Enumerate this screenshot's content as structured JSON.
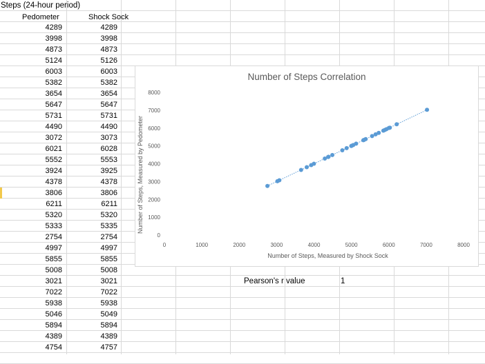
{
  "sheet": {
    "title": "Steps (24-hour period)",
    "col_a_header": "Pedometer",
    "col_b_header": "Shock Sock",
    "rows": [
      [
        "4289",
        "4289"
      ],
      [
        "3998",
        "3998"
      ],
      [
        "4873",
        "4873"
      ],
      [
        "5124",
        "5126"
      ],
      [
        "6003",
        "6003"
      ],
      [
        "5382",
        "5382"
      ],
      [
        "3654",
        "3654"
      ],
      [
        "5647",
        "5647"
      ],
      [
        "5731",
        "5731"
      ],
      [
        "4490",
        "4490"
      ],
      [
        "3072",
        "3073"
      ],
      [
        "6021",
        "6028"
      ],
      [
        "5552",
        "5553"
      ],
      [
        "3924",
        "3925"
      ],
      [
        "4378",
        "4378"
      ],
      [
        "3806",
        "3806"
      ],
      [
        "6211",
        "6211"
      ],
      [
        "5320",
        "5320"
      ],
      [
        "5333",
        "5335"
      ],
      [
        "2754",
        "2754"
      ],
      [
        "4997",
        "4997"
      ],
      [
        "5855",
        "5855"
      ],
      [
        "5008",
        "5008"
      ],
      [
        "3021",
        "3021"
      ],
      [
        "7022",
        "7022"
      ],
      [
        "5938",
        "5938"
      ],
      [
        "5046",
        "5049"
      ],
      [
        "5894",
        "5894"
      ],
      [
        "4389",
        "4389"
      ],
      [
        "4754",
        "4757"
      ]
    ]
  },
  "pearson": {
    "label": "Pearson's r value",
    "value": "1"
  },
  "chart_data": {
    "type": "scatter",
    "title": "Number of Steps Correlation",
    "xlabel": "Number of Steps, Measured by Shock Sock",
    "ylabel": "Number of Steps, Measured by Pedometer",
    "xlim": [
      0,
      8000
    ],
    "ylim": [
      0,
      8000
    ],
    "xticks": [
      "0",
      "1000",
      "2000",
      "3000",
      "4000",
      "5000",
      "6000",
      "7000",
      "8000"
    ],
    "yticks": [
      "0",
      "1000",
      "2000",
      "3000",
      "4000",
      "5000",
      "6000",
      "7000",
      "8000"
    ],
    "trendline": true,
    "marker_color": "#5b9bd5",
    "points": [
      [
        4289,
        4289
      ],
      [
        3998,
        3998
      ],
      [
        4873,
        4873
      ],
      [
        5126,
        5124
      ],
      [
        6003,
        6003
      ],
      [
        5382,
        5382
      ],
      [
        3654,
        3654
      ],
      [
        5647,
        5647
      ],
      [
        5731,
        5731
      ],
      [
        4490,
        4490
      ],
      [
        3073,
        3072
      ],
      [
        6028,
        6021
      ],
      [
        5553,
        5552
      ],
      [
        3925,
        3924
      ],
      [
        4378,
        4378
      ],
      [
        3806,
        3806
      ],
      [
        6211,
        6211
      ],
      [
        5320,
        5320
      ],
      [
        5335,
        5333
      ],
      [
        2754,
        2754
      ],
      [
        4997,
        4997
      ],
      [
        5855,
        5855
      ],
      [
        5008,
        5008
      ],
      [
        3021,
        3021
      ],
      [
        7022,
        7022
      ],
      [
        5938,
        5938
      ],
      [
        5049,
        5046
      ],
      [
        5894,
        5894
      ],
      [
        4389,
        4389
      ],
      [
        4757,
        4754
      ]
    ]
  }
}
